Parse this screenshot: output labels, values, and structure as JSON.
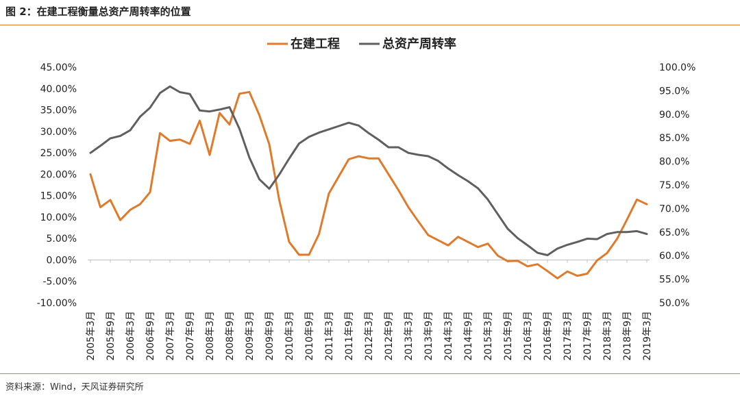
{
  "figure": {
    "title": "图 2：在建工程衡量总资产周转率的位置",
    "source": "资料来源：Wind，天风证券研究所"
  },
  "colors": {
    "series1": "#e07a2a",
    "series2": "#5f5f5f",
    "rule": "#e07a2a",
    "axis": "#bfbfbf"
  },
  "chart_data": {
    "type": "line",
    "title": "",
    "legend_position": "top-center",
    "grid": false,
    "x_ticks": [
      "2005年3月",
      "2005年9月",
      "2006年3月",
      "2006年9月",
      "2007年3月",
      "2007年9月",
      "2008年3月",
      "2008年9月",
      "2009年3月",
      "2009年9月",
      "2010年3月",
      "2010年9月",
      "2011年3月",
      "2011年9月",
      "2012年3月",
      "2012年9月",
      "2013年3月",
      "2013年9月",
      "2014年3月",
      "2014年9月",
      "2015年3月",
      "2015年9月",
      "2016年3月",
      "2016年9月",
      "2017年3月",
      "2017年9月",
      "2018年3月",
      "2018年9月",
      "2019年3月"
    ],
    "x": [
      "2005Q1",
      "2005Q2",
      "2005Q3",
      "2005Q4",
      "2006Q1",
      "2006Q2",
      "2006Q3",
      "2006Q4",
      "2007Q1",
      "2007Q2",
      "2007Q3",
      "2007Q4",
      "2008Q1",
      "2008Q2",
      "2008Q3",
      "2008Q4",
      "2009Q1",
      "2009Q2",
      "2009Q3",
      "2009Q4",
      "2010Q1",
      "2010Q2",
      "2010Q3",
      "2010Q4",
      "2011Q1",
      "2011Q2",
      "2011Q3",
      "2011Q4",
      "2012Q1",
      "2012Q2",
      "2012Q3",
      "2012Q4",
      "2013Q1",
      "2013Q2",
      "2013Q3",
      "2013Q4",
      "2014Q1",
      "2014Q2",
      "2014Q3",
      "2014Q4",
      "2015Q1",
      "2015Q2",
      "2015Q3",
      "2015Q4",
      "2016Q1",
      "2016Q2",
      "2016Q3",
      "2016Q4",
      "2017Q1",
      "2017Q2",
      "2017Q3",
      "2017Q4",
      "2018Q1",
      "2018Q2",
      "2018Q3",
      "2018Q4",
      "2019Q1"
    ],
    "y_left": {
      "ticks": [
        "45.00%",
        "40.00%",
        "35.00%",
        "30.00%",
        "25.00%",
        "20.00%",
        "15.00%",
        "10.00%",
        "5.00%",
        "0.00%",
        "-5.00%",
        "-10.00%"
      ],
      "min": -10,
      "max": 45
    },
    "y_right": {
      "ticks": [
        "100.0%",
        "95.0%",
        "90.0%",
        "85.0%",
        "80.0%",
        "75.0%",
        "70.0%",
        "65.0%",
        "60.0%",
        "55.0%",
        "50.0%"
      ],
      "min": 50,
      "max": 100
    },
    "series": [
      {
        "name": "在建工程",
        "axis": "left",
        "values": [
          20,
          12.3,
          14,
          9.3,
          11.7,
          13,
          15.8,
          29.6,
          27.8,
          28.1,
          27.1,
          32.5,
          24.5,
          34.3,
          31.6,
          38.8,
          39.2,
          33.8,
          27,
          14,
          4.2,
          1.2,
          1.2,
          6,
          15.5,
          19.5,
          23.5,
          24.2,
          23.7,
          23.7,
          20,
          16.3,
          12.3,
          9,
          5.8,
          4.6,
          3.4,
          5.4,
          4.2,
          3,
          3.8,
          1,
          -0.3,
          -0.2,
          -1.5,
          -1,
          -2.6,
          -4.3,
          -2.7,
          -3.7,
          -3.2,
          -0.1,
          1.6,
          4.9,
          9.4,
          14.1,
          13
        ]
      },
      {
        "name": "总资产周转率",
        "axis": "right",
        "values": [
          81.8,
          83.3,
          84.9,
          85.4,
          86.6,
          89.5,
          91.4,
          94.5,
          95.9,
          94.7,
          94.3,
          90.8,
          90.6,
          91,
          91.5,
          86.9,
          80.8,
          76.2,
          74.2,
          77.2,
          80.6,
          83.8,
          85.2,
          86.1,
          86.8,
          87.5,
          88.2,
          87.6,
          86,
          84.6,
          83,
          83,
          81.8,
          81.4,
          81.1,
          80.1,
          78.5,
          77.1,
          75.8,
          74.3,
          71.9,
          68.8,
          65.7,
          63.7,
          62.2,
          60.6,
          60.1,
          61.5,
          62.3,
          62.9,
          63.6,
          63.5,
          64.6,
          65,
          65,
          65.2,
          64.6
        ]
      }
    ]
  }
}
